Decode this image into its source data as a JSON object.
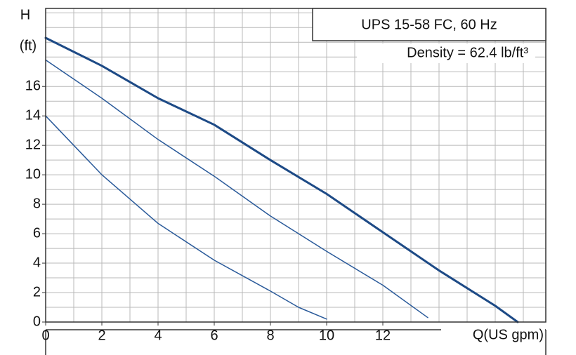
{
  "chart_data": {
    "type": "line",
    "title": "UPS 15-58 FC, 60 Hz",
    "subtitle": "Density = 62.4 lb/ft³",
    "y_label": "H",
    "y_unit": "(ft)",
    "x_label": "Q(US gpm)",
    "xlim": [
      0,
      17.8
    ],
    "ylim": [
      0,
      21.3
    ],
    "xticks": [
      0,
      2,
      4,
      6,
      8,
      10,
      12
    ],
    "yticks": [
      0,
      2,
      4,
      6,
      8,
      10,
      12,
      14,
      16
    ],
    "xgrid": [
      0,
      1,
      2,
      3,
      4,
      5,
      6,
      7,
      8,
      9,
      10,
      11,
      12,
      13,
      14,
      15,
      16,
      17
    ],
    "ygrid": [
      0,
      1,
      2,
      3,
      4,
      5,
      6,
      7,
      8,
      9,
      10,
      11,
      12,
      13,
      14,
      15,
      16,
      17,
      18,
      19,
      20,
      21
    ],
    "series": [
      {
        "color": "#1d4a86",
        "width": 3,
        "x": [
          0,
          2,
          4,
          6,
          8,
          10,
          12,
          14,
          16,
          16.8
        ],
        "values": [
          19.3,
          17.4,
          15.2,
          13.4,
          11.0,
          8.7,
          6.1,
          3.5,
          1.1,
          0
        ]
      },
      {
        "color": "#2a5a9a",
        "width": 1.5,
        "x": [
          0,
          2,
          4,
          6,
          8,
          10,
          12,
          13.6
        ],
        "values": [
          17.8,
          15.2,
          12.4,
          9.9,
          7.2,
          4.8,
          2.5,
          0.3
        ]
      },
      {
        "color": "#2a5a9a",
        "width": 1.5,
        "x": [
          0,
          2,
          4,
          6,
          8,
          9,
          10
        ],
        "values": [
          14.0,
          10.0,
          6.7,
          4.2,
          2.1,
          1.0,
          0.2
        ]
      }
    ]
  }
}
